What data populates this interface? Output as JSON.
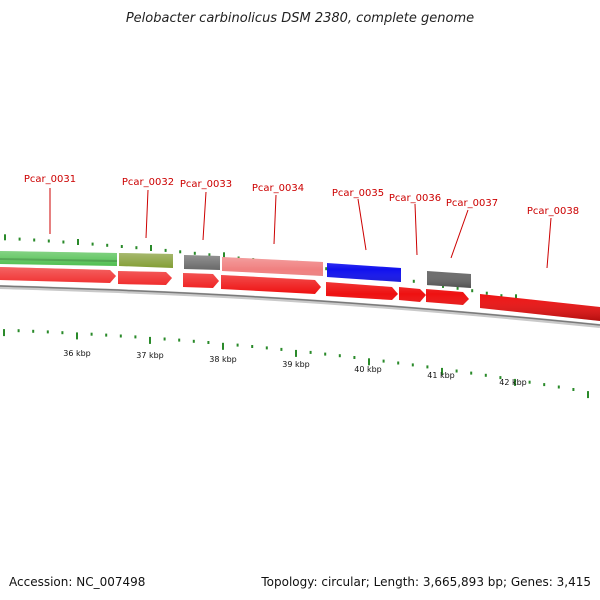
{
  "title": "Pelobacter carbinolicus DSM 2380, complete genome",
  "footer": {
    "accession": "Accession: NC_007498",
    "summary": "Topology: circular; Length: 3,665,893 bp; Genes: 3,415"
  },
  "colors": {
    "label": "#cc0000",
    "tick": "#2a8a2a",
    "backbone": "#888888",
    "cds": "#ee1111"
  },
  "genes": [
    {
      "id": "Pcar_0031",
      "label": "Pcar_0031",
      "color": "#44bb44"
    },
    {
      "id": "Pcar_0032",
      "label": "Pcar_0032",
      "color": "#7f9a2e"
    },
    {
      "id": "Pcar_0033",
      "label": "Pcar_0033",
      "color": "#6a6a6a"
    },
    {
      "id": "Pcar_0034",
      "label": "Pcar_0034",
      "color": "#f08080"
    },
    {
      "id": "Pcar_0035",
      "label": "Pcar_0035",
      "color": "#1010ee"
    },
    {
      "id": "Pcar_0036",
      "label": "Pcar_0036",
      "color": "#ee1111"
    },
    {
      "id": "Pcar_0037",
      "label": "Pcar_0037",
      "color": "#6a6a6a"
    },
    {
      "id": "Pcar_0038",
      "label": "Pcar_0038",
      "color": "#ee1111"
    }
  ],
  "kbp_labels": [
    "36 kbp",
    "37 kbp",
    "38 kbp",
    "39 kbp",
    "40 kbp",
    "41 kbp",
    "42 kbp"
  ]
}
